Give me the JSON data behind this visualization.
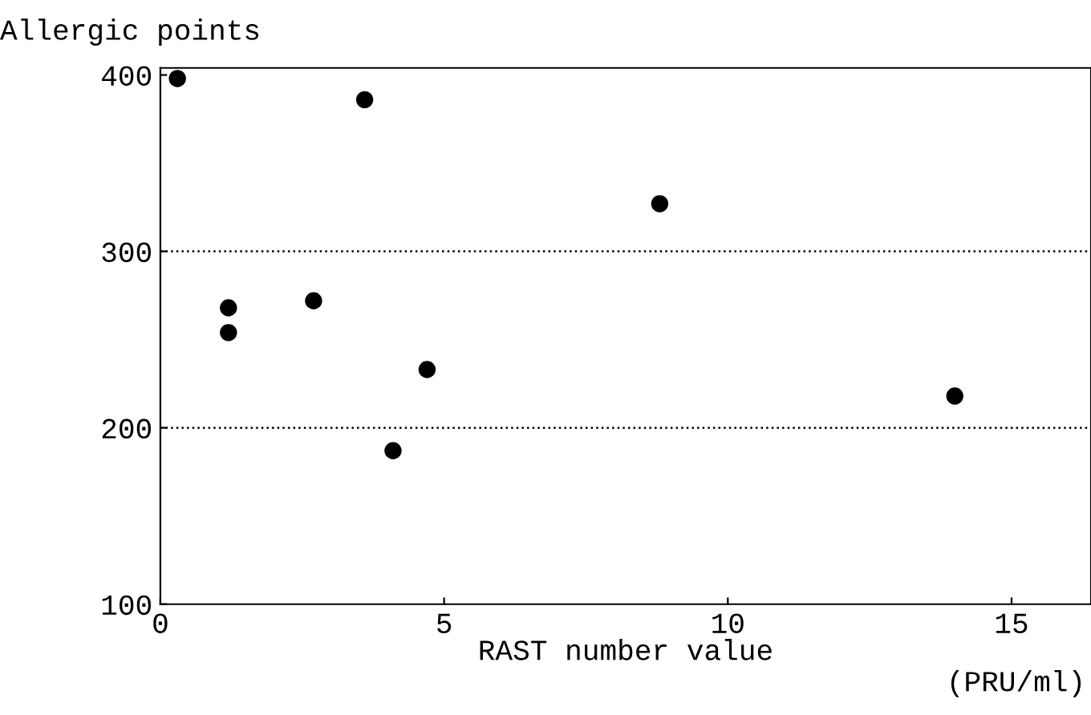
{
  "chart_data": {
    "type": "scatter",
    "xlabel": "RAST number value",
    "ylabel": "Allergic points",
    "annotations": [
      "(PRU/ml)"
    ],
    "x": [
      0.3,
      1.2,
      1.2,
      2.7,
      3.6,
      4.1,
      4.7,
      8.8,
      14.0
    ],
    "values": [
      398,
      268,
      254,
      272,
      386,
      187,
      233,
      327,
      218
    ],
    "color": "#000000",
    "marker": "circle",
    "xlim": [
      0,
      16.4
    ],
    "ylim": [
      100,
      404
    ],
    "xticks": [
      0,
      5,
      10,
      15
    ],
    "yticks": [
      100,
      200,
      300,
      400
    ],
    "ref_lines": [
      {
        "axis": "y",
        "value": 200,
        "line_style": "dotted"
      },
      {
        "axis": "y",
        "value": 300,
        "line_style": "dotted"
      }
    ],
    "grid": false
  }
}
